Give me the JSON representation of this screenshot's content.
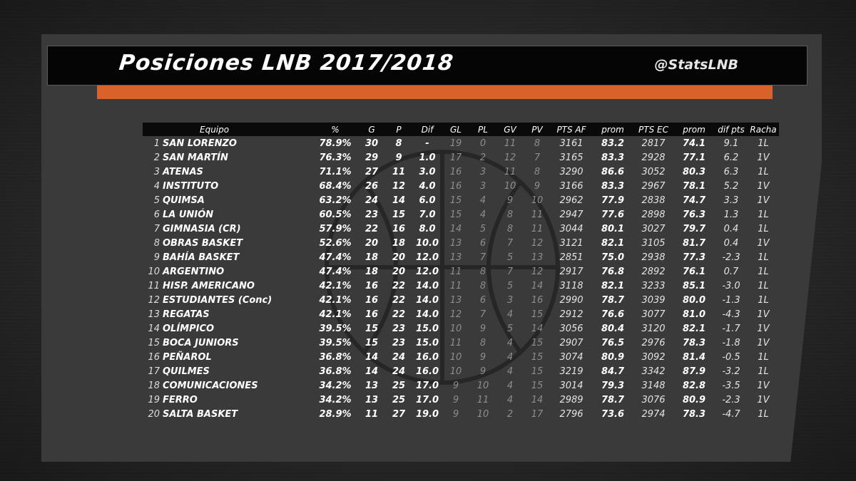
{
  "header": {
    "title": "Posiciones LNB 2017/2018",
    "handle": "@StatsLNB"
  },
  "colors": {
    "accent": "#d9622b",
    "background": "#2d2d2d",
    "header_bar": "#050505"
  },
  "table": {
    "columns": [
      "Equipo",
      "%",
      "G",
      "P",
      "Dif",
      "GL",
      "PL",
      "GV",
      "PV",
      "PTS AF",
      "prom",
      "PTS EC",
      "prom",
      "dif pts",
      "Racha"
    ],
    "rows": [
      [
        "1",
        "SAN LORENZO",
        "78.9%",
        "30",
        "8",
        "-",
        "19",
        "0",
        "11",
        "8",
        "3161",
        "83.2",
        "2817",
        "74.1",
        "9.1",
        "1L"
      ],
      [
        "2",
        "SAN MARTÍN",
        "76.3%",
        "29",
        "9",
        "1.0",
        "17",
        "2",
        "12",
        "7",
        "3165",
        "83.3",
        "2928",
        "77.1",
        "6.2",
        "1V"
      ],
      [
        "3",
        "ATENAS",
        "71.1%",
        "27",
        "11",
        "3.0",
        "16",
        "3",
        "11",
        "8",
        "3290",
        "86.6",
        "3052",
        "80.3",
        "6.3",
        "1L"
      ],
      [
        "4",
        "INSTITUTO",
        "68.4%",
        "26",
        "12",
        "4.0",
        "16",
        "3",
        "10",
        "9",
        "3166",
        "83.3",
        "2967",
        "78.1",
        "5.2",
        "1V"
      ],
      [
        "5",
        "QUIMSA",
        "63.2%",
        "24",
        "14",
        "6.0",
        "15",
        "4",
        "9",
        "10",
        "2962",
        "77.9",
        "2838",
        "74.7",
        "3.3",
        "1V"
      ],
      [
        "6",
        "LA UNIÓN",
        "60.5%",
        "23",
        "15",
        "7.0",
        "15",
        "4",
        "8",
        "11",
        "2947",
        "77.6",
        "2898",
        "76.3",
        "1.3",
        "1L"
      ],
      [
        "7",
        "GIMNASIA (CR)",
        "57.9%",
        "22",
        "16",
        "8.0",
        "14",
        "5",
        "8",
        "11",
        "3044",
        "80.1",
        "3027",
        "79.7",
        "0.4",
        "1L"
      ],
      [
        "8",
        "OBRAS BASKET",
        "52.6%",
        "20",
        "18",
        "10.0",
        "13",
        "6",
        "7",
        "12",
        "3121",
        "82.1",
        "3105",
        "81.7",
        "0.4",
        "1V"
      ],
      [
        "9",
        "BAHÍA BASKET",
        "47.4%",
        "18",
        "20",
        "12.0",
        "13",
        "7",
        "5",
        "13",
        "2851",
        "75.0",
        "2938",
        "77.3",
        "-2.3",
        "1L"
      ],
      [
        "10",
        "ARGENTINO",
        "47.4%",
        "18",
        "20",
        "12.0",
        "11",
        "8",
        "7",
        "12",
        "2917",
        "76.8",
        "2892",
        "76.1",
        "0.7",
        "1L"
      ],
      [
        "11",
        "HISP. AMERICANO",
        "42.1%",
        "16",
        "22",
        "14.0",
        "11",
        "8",
        "5",
        "14",
        "3118",
        "82.1",
        "3233",
        "85.1",
        "-3.0",
        "1L"
      ],
      [
        "12",
        "ESTUDIANTES (Conc)",
        "42.1%",
        "16",
        "22",
        "14.0",
        "13",
        "6",
        "3",
        "16",
        "2990",
        "78.7",
        "3039",
        "80.0",
        "-1.3",
        "1L"
      ],
      [
        "13",
        "REGATAS",
        "42.1%",
        "16",
        "22",
        "14.0",
        "12",
        "7",
        "4",
        "15",
        "2912",
        "76.6",
        "3077",
        "81.0",
        "-4.3",
        "1V"
      ],
      [
        "14",
        "OLÍMPICO",
        "39.5%",
        "15",
        "23",
        "15.0",
        "10",
        "9",
        "5",
        "14",
        "3056",
        "80.4",
        "3120",
        "82.1",
        "-1.7",
        "1V"
      ],
      [
        "15",
        "BOCA JUNIORS",
        "39.5%",
        "15",
        "23",
        "15.0",
        "11",
        "8",
        "4",
        "15",
        "2907",
        "76.5",
        "2976",
        "78.3",
        "-1.8",
        "1V"
      ],
      [
        "16",
        "PEÑAROL",
        "36.8%",
        "14",
        "24",
        "16.0",
        "10",
        "9",
        "4",
        "15",
        "3074",
        "80.9",
        "3092",
        "81.4",
        "-0.5",
        "1L"
      ],
      [
        "17",
        "QUILMES",
        "36.8%",
        "14",
        "24",
        "16.0",
        "10",
        "9",
        "4",
        "15",
        "3219",
        "84.7",
        "3342",
        "87.9",
        "-3.2",
        "1L"
      ],
      [
        "18",
        "COMUNICACIONES",
        "34.2%",
        "13",
        "25",
        "17.0",
        "9",
        "10",
        "4",
        "15",
        "3014",
        "79.3",
        "3148",
        "82.8",
        "-3.5",
        "1V"
      ],
      [
        "19",
        "FERRO",
        "34.2%",
        "13",
        "25",
        "17.0",
        "9",
        "11",
        "4",
        "14",
        "2989",
        "78.7",
        "3076",
        "80.9",
        "-2.3",
        "1V"
      ],
      [
        "20",
        "SALTA BASKET",
        "28.9%",
        "11",
        "27",
        "19.0",
        "9",
        "10",
        "2",
        "17",
        "2796",
        "73.6",
        "2974",
        "78.3",
        "-4.7",
        "1L"
      ]
    ]
  }
}
